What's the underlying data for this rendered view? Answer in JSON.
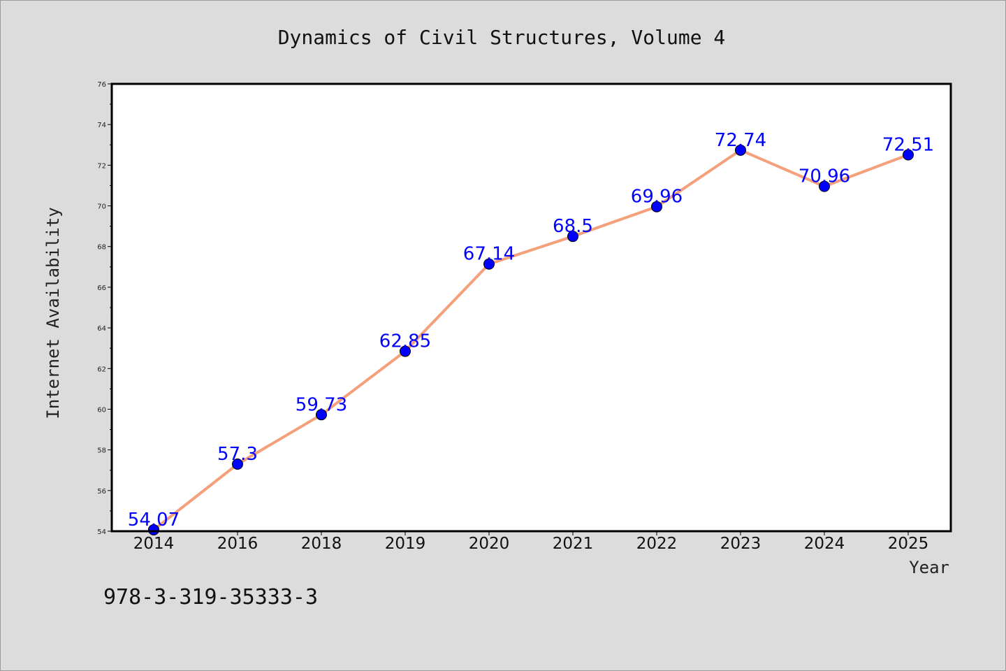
{
  "footer_note": "978-3-319-35333-3",
  "chart_data": {
    "type": "line",
    "title": "Dynamics of Civil Structures, Volume 4",
    "xlabel": "Year",
    "ylabel": "Internet Availability",
    "categories": [
      "2014",
      "2016",
      "2018",
      "2019",
      "2020",
      "2021",
      "2022",
      "2023",
      "2024",
      "2025"
    ],
    "values": [
      54.07,
      57.3,
      59.73,
      62.85,
      67.14,
      68.5,
      69.96,
      72.74,
      70.96,
      72.51
    ],
    "data_labels": [
      "54.07",
      "57.3",
      "59.73",
      "62.85",
      "67.14",
      "68.5",
      "69.96",
      "72.74",
      "70.96",
      "72.51"
    ],
    "ylim": [
      54,
      76
    ],
    "yticks": [
      "54",
      "56",
      "58",
      "60",
      "62",
      "64",
      "66",
      "68",
      "70",
      "72",
      "74",
      "76"
    ],
    "grid": false,
    "colors": {
      "line": "#f4a07a",
      "marker": "#0000ff",
      "marker_edge": "#000000",
      "data_label": "#0000ff",
      "background": "#dcdcdc",
      "plot_background": "#ffffff"
    }
  }
}
